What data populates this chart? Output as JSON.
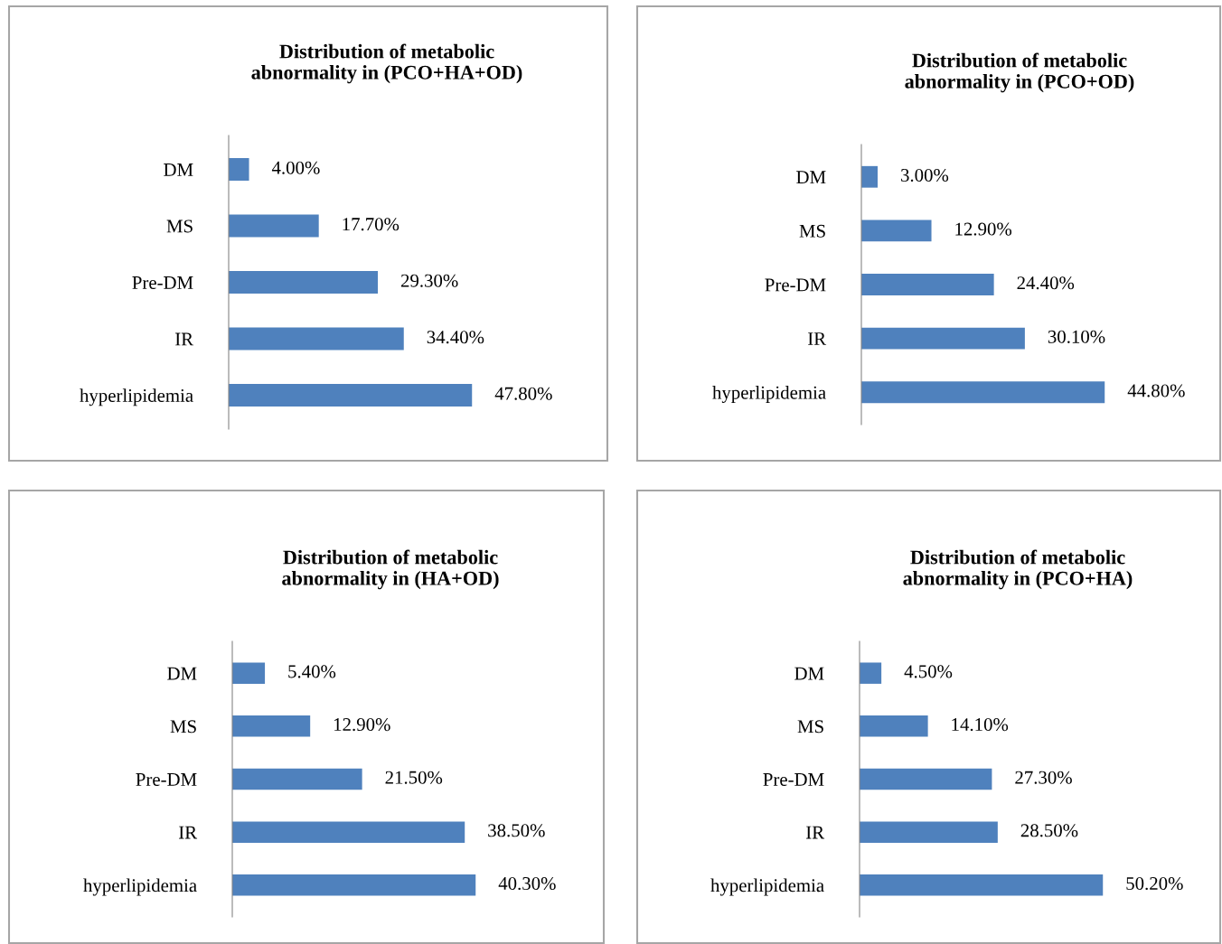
{
  "chart_data": [
    {
      "type": "bar",
      "orientation": "horizontal",
      "title": "Distribution of metabolic\nabnormality in (PCO+HA+OD)",
      "categories": [
        "DM",
        "MS",
        "Pre-DM",
        "IR",
        "hyperlipidemia"
      ],
      "values": [
        4.0,
        17.7,
        29.3,
        34.4,
        47.8
      ],
      "value_labels": [
        "4.00%",
        "17.70%",
        "29.30%",
        "34.40%",
        "47.80%"
      ],
      "color": "#4f81bd",
      "grid": false,
      "legend": false
    },
    {
      "type": "bar",
      "orientation": "horizontal",
      "title": "Distribution of metabolic\nabnormality in (PCO+OD)",
      "categories": [
        "DM",
        "MS",
        "Pre-DM",
        "IR",
        "hyperlipidemia"
      ],
      "values": [
        3.0,
        12.9,
        24.4,
        30.1,
        44.8
      ],
      "value_labels": [
        "3.00%",
        "12.90%",
        "24.40%",
        "30.10%",
        "44.80%"
      ],
      "color": "#4f81bd",
      "grid": false,
      "legend": false
    },
    {
      "type": "bar",
      "orientation": "horizontal",
      "title": "Distribution of metabolic\nabnormality in (HA+OD)",
      "categories": [
        "DM",
        "MS",
        "Pre-DM",
        "IR",
        "hyperlipidemia"
      ],
      "values": [
        5.4,
        12.9,
        21.5,
        38.5,
        40.3
      ],
      "value_labels": [
        "5.40%",
        "12.90%",
        "21.50%",
        "38.50%",
        "40.30%"
      ],
      "color": "#4f81bd",
      "grid": false,
      "legend": false
    },
    {
      "type": "bar",
      "orientation": "horizontal",
      "title": "Distribution of metabolic\nabnormality in (PCO+HA)",
      "categories": [
        "DM",
        "MS",
        "Pre-DM",
        "IR",
        "hyperlipidemia"
      ],
      "values": [
        4.5,
        14.1,
        27.3,
        28.5,
        50.2
      ],
      "value_labels": [
        "4.50%",
        "14.10%",
        "27.30%",
        "28.50%",
        "50.20%"
      ],
      "color": "#4f81bd",
      "grid": false,
      "legend": false
    }
  ]
}
